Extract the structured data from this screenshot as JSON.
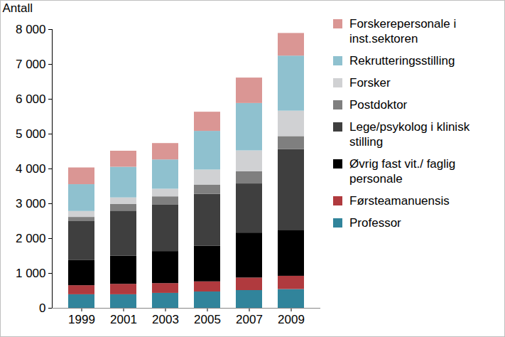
{
  "chart_data": {
    "type": "bar",
    "stacked": true,
    "legend": "right",
    "grid": false,
    "y_label": "Antall",
    "categories": [
      "1999",
      "2001",
      "2003",
      "2005",
      "2007",
      "2009"
    ],
    "ylim": [
      0,
      8000
    ],
    "yticks": [
      0,
      {
        "value": 1000,
        "label": "1 000"
      },
      {
        "value": 2000,
        "label": "2 000"
      },
      {
        "value": 3000,
        "label": "3 000"
      },
      {
        "value": 4000,
        "label": "4 000"
      },
      {
        "value": 5000,
        "label": "5 000"
      },
      {
        "value": 6000,
        "label": "6 000"
      },
      {
        "value": 7000,
        "label": "7 000"
      },
      {
        "value": 8000,
        "label": "8 000"
      }
    ],
    "series": [
      {
        "name": "Professor",
        "color": "#31849b",
        "values": [
          390,
          390,
          430,
          470,
          510,
          540
        ]
      },
      {
        "name": "Førsteamanuensis",
        "color": "#b03a3e",
        "values": [
          260,
          300,
          280,
          290,
          360,
          380
        ]
      },
      {
        "name": "Øvrig fast vit./ faglig personale",
        "color": "#000000",
        "values": [
          720,
          810,
          920,
          1020,
          1290,
          1320
        ]
      },
      {
        "name": "Lege/psykolog i klinisk stilling",
        "color": "#3f3f3f",
        "values": [
          1120,
          1290,
          1330,
          1490,
          1410,
          2320
        ]
      },
      {
        "name": "Postdoktor",
        "color": "#7f7f7f",
        "values": [
          120,
          190,
          240,
          270,
          350,
          370
        ]
      },
      {
        "name": "Forsker",
        "color": "#d0d1d3",
        "values": [
          170,
          190,
          220,
          430,
          600,
          730
        ]
      },
      {
        "name": "Rekrutteringsstilling",
        "color": "#8fc1cf",
        "values": [
          770,
          880,
          840,
          1110,
          1360,
          1580
        ]
      },
      {
        "name": "Forskerepersonale i inst.sektoren",
        "color": "#da9694",
        "values": [
          480,
          460,
          470,
          550,
          730,
          650
        ]
      }
    ]
  }
}
